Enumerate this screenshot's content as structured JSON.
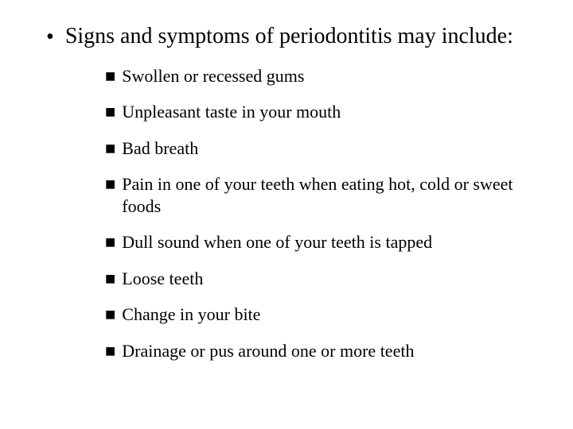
{
  "document": {
    "heading": "Signs and symptoms of periodontitis may include:",
    "heading_fontsize": 28,
    "sub_fontsize": 22,
    "text_color": "#000000",
    "background_color": "#ffffff",
    "main_bullet_glyph": "•",
    "sub_bullet_glyph": "■",
    "items": [
      "Swollen or recessed gums",
      "Unpleasant taste in your mouth",
      "Bad breath",
      "Pain in one of your teeth when eating hot, cold or sweet foods",
      "Dull sound when one of your teeth is tapped",
      "Loose teeth",
      "Change in your bite",
      "Drainage or pus around one or more teeth"
    ]
  }
}
